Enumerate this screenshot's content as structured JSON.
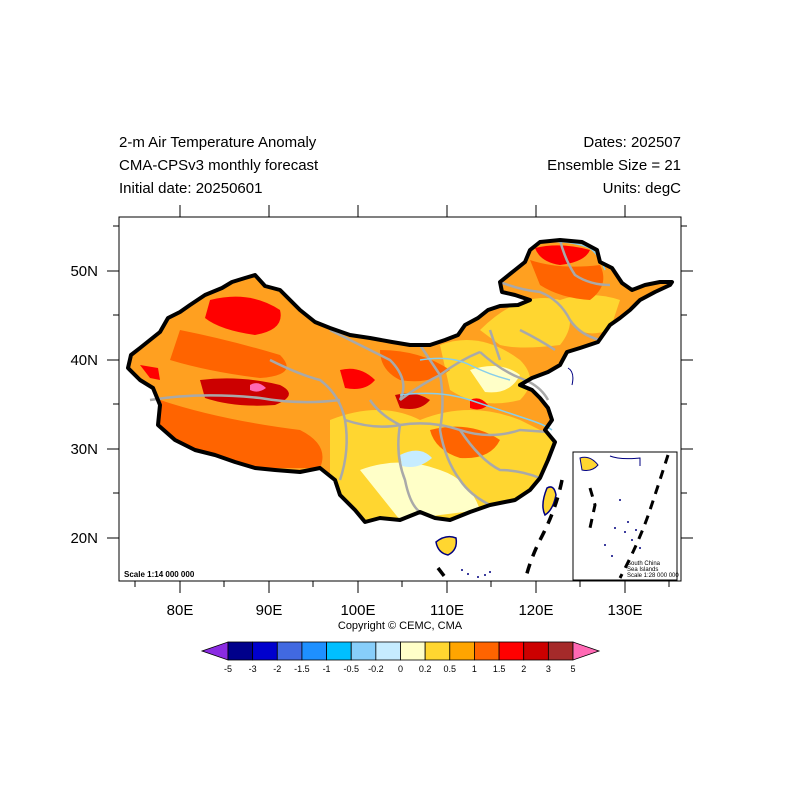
{
  "header": {
    "title": "2-m Air Temperature Anomaly",
    "model": "CMA-CPSv3 monthly forecast",
    "initial_date": "Initial date: 20250601",
    "dates": "Dates: 202507",
    "ensemble": "Ensemble Size = 21",
    "units": "Units: degC"
  },
  "map": {
    "lon_labels": [
      "80E",
      "90E",
      "100E",
      "110E",
      "120E",
      "130E"
    ],
    "lat_labels": [
      "50N",
      "40N",
      "30N",
      "20N"
    ],
    "scale_text": "Scale 1:14 000 000",
    "inset": {
      "line1": "South China",
      "line2": "Sea Islands",
      "line3": "Scale 1:28 000 000"
    },
    "colors": {
      "border": "#000000",
      "province": "#a9a9a9",
      "coast": "#000080",
      "river": "#87ceeb"
    }
  },
  "copyright": "Copyright © CEMC, CMA",
  "colorbar": {
    "labels": [
      "-5",
      "-3",
      "-2",
      "-1.5",
      "-1",
      "-0.5",
      "-0.2",
      "0",
      "0.2",
      "0.5",
      "1",
      "1.5",
      "2",
      "3",
      "5"
    ],
    "colors": [
      "#8a2be2",
      "#00008b",
      "#0000cd",
      "#4169e1",
      "#1e90ff",
      "#00bfff",
      "#87cefa",
      "#c6ecff",
      "#ffffc8",
      "#ffd630",
      "#ffa500",
      "#ff6400",
      "#ff0000",
      "#cc0000",
      "#a52a2a",
      "#ff69b4"
    ]
  }
}
